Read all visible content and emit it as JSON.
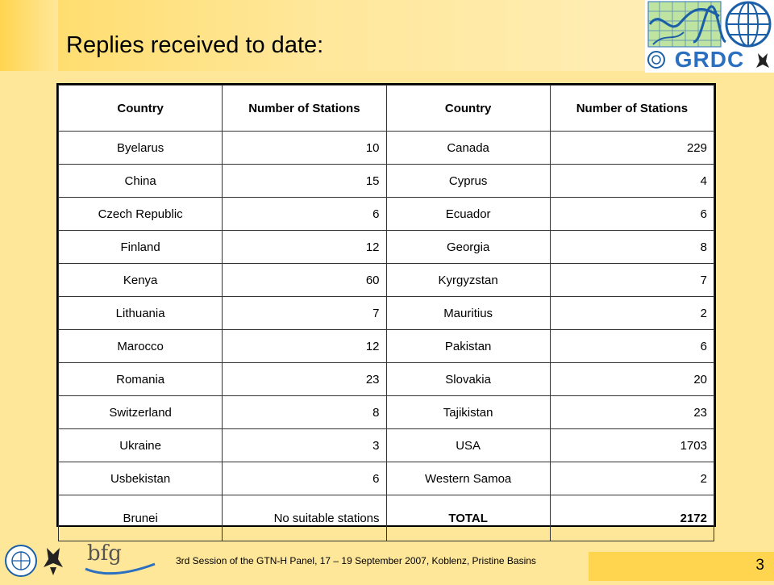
{
  "title": "Replies received to date:",
  "logo_text": "GRDC",
  "table": {
    "headers": [
      "Country",
      "Number of Stations",
      "Country",
      "Number of Stations"
    ],
    "rows": [
      [
        "Byelarus",
        "10",
        "Canada",
        "229"
      ],
      [
        "China",
        "15",
        "Cyprus",
        "4"
      ],
      [
        "Czech Republic",
        "6",
        "Ecuador",
        "6"
      ],
      [
        "Finland",
        "12",
        "Georgia",
        "8"
      ],
      [
        "Kenya",
        "60",
        "Kyrgyzstan",
        "7"
      ],
      [
        "Lithuania",
        "7",
        "Mauritius",
        "2"
      ],
      [
        "Marocco",
        "12",
        "Pakistan",
        "6"
      ],
      [
        "Romania",
        "23",
        "Slovakia",
        "20"
      ],
      [
        "Switzerland",
        "8",
        "Tajikistan",
        "23"
      ],
      [
        "Ukraine",
        "3",
        "USA",
        "1703"
      ],
      [
        "Usbekistan",
        "6",
        "Western Samoa",
        "2"
      ],
      [
        "Brunei",
        "No suitable stations",
        "TOTAL",
        "2172"
      ]
    ]
  },
  "footer": {
    "logo_text": "bfg",
    "text": "3rd Session of the GTN-H Panel, 17 – 19 September 2007, Koblenz, Pristine Basins",
    "page_number": "3"
  },
  "colors": {
    "background": "#FFE79A",
    "accent": "#FFD54F",
    "logo_blue": "#2a6fc0",
    "logo_green": "#7cc243"
  }
}
